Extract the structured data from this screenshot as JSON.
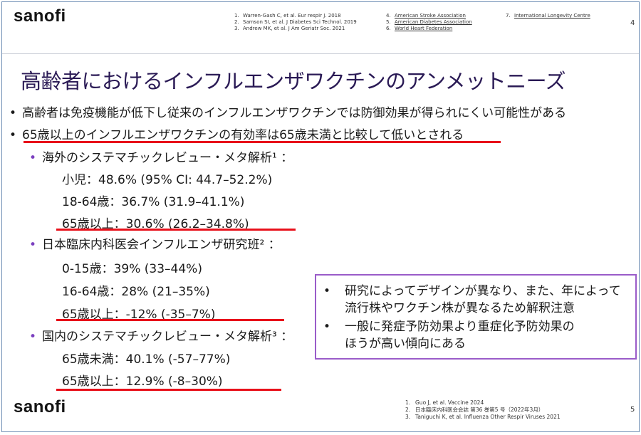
{
  "brand": {
    "logo_text": "sanofi"
  },
  "header_refs": {
    "col1": [
      {
        "num": "1.",
        "text": "Warren-Gash C, et al. Eur respir J. 2018"
      },
      {
        "num": "2.",
        "text": "Samson SI, et al. J Diabetes Sci Technol. 2019"
      },
      {
        "num": "3.",
        "text": "Andrew MK, et al. J Am Geriatr Soc. 2021"
      }
    ],
    "col2": [
      {
        "num": "4.",
        "text": "American Stroke Association"
      },
      {
        "num": "5.",
        "text": "American Diabetes Association"
      },
      {
        "num": "6.",
        "text": "World Heart Federation"
      }
    ],
    "col3": [
      {
        "num": "7.",
        "text": "International Longevity Centre"
      }
    ]
  },
  "page_numbers": {
    "top": "4",
    "bottom": "5"
  },
  "title": "高齢者におけるインフルエンザワクチンのアンメットニーズ",
  "bullets": {
    "b1": "高齢者は免疫機能が低下し従来のインフルエンザワクチンでは防御効果が得られにくい可能性がある",
    "b2": "65歳以上のインフルエンザワクチンの有効率は65歳未満と比較して低いとされる",
    "dot": "•",
    "subdot": "•"
  },
  "sections": {
    "s1": {
      "label": "海外のシステマチックレビュー・メタ解析¹ ：",
      "rows": [
        "小児：48.6% (95% CI: 44.7–52.2%)",
        "18-64歳：36.7% (31.9–41.1%)",
        "65歳以上：30.6% (26.2–34.8%)"
      ]
    },
    "s2": {
      "label": "日本臨床内科医会インフルエンザ研究班² ：",
      "rows": [
        "0-15歳：39% (33–44%)",
        "16-64歳：28% (21–35%)",
        "65歳以上：-12% (-35–7%)"
      ]
    },
    "s3": {
      "label": "国内のシステマチックレビュー・メタ解析³ ：",
      "rows": [
        "65歳未満：40.1% (-57–77%)",
        "65歳以上：12.9% (-8–30%)"
      ]
    }
  },
  "note_box": {
    "item1_line1": "研究によってデザインが異なり、また、年によって",
    "item1_line2": "流行株やワクチン株が異なるため解釈注意",
    "item2_line1": "一般に発症予防効果より重症化予防効果の",
    "item2_line2": "ほうが高い傾向にある"
  },
  "footer_refs": [
    {
      "num": "1.",
      "text": "Guo J, et al. Vaccine 2024"
    },
    {
      "num": "2.",
      "text": "日本臨床内科医会会誌 第36 巻第5 号（2022年3月）"
    },
    {
      "num": "3.",
      "text": "Taniguchi K, et al. Influenza Other Respir Viruses 2021"
    }
  ],
  "colors": {
    "accent_red": "#e8101a",
    "accent_purple": "#9a5cc9",
    "title_color": "#2a1a55"
  }
}
